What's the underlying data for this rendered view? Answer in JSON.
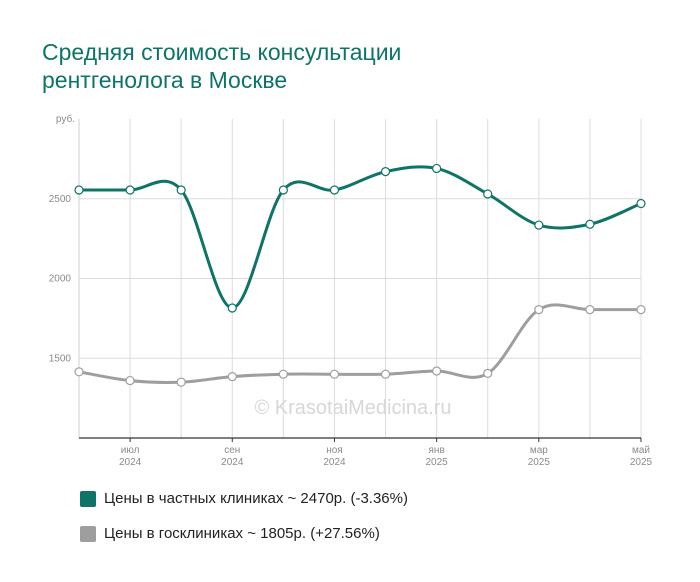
{
  "title_lines": [
    "Средняя стоимость консультации",
    "рентгенолога в Москве"
  ],
  "watermark": "© KrasotaiMedicina.ru",
  "legend": [
    {
      "label": "Цены в частных клиниках ~ 2470р. (-3.36%)",
      "color": "#0e7468"
    },
    {
      "label": "Цены в госклиниках ~ 1805р. (+27.56%)",
      "color": "#9e9e9e"
    }
  ],
  "chart_data": {
    "type": "line",
    "y_unit_label": "руб.",
    "ylim": [
      1000,
      3000
    ],
    "y_ticks": [
      1500,
      2000,
      2500
    ],
    "grid": true,
    "x_tick_labels": [
      {
        "i": 1,
        "month": "июл",
        "year": "2024"
      },
      {
        "i": 3,
        "month": "сен",
        "year": "2024"
      },
      {
        "i": 5,
        "month": "ноя",
        "year": "2024"
      },
      {
        "i": 7,
        "month": "янв",
        "year": "2025"
      },
      {
        "i": 9,
        "month": "мар",
        "year": "2025"
      },
      {
        "i": 11,
        "month": "май",
        "year": "2025"
      }
    ],
    "series": [
      {
        "name": "Цены в частных клиниках",
        "color": "#0e7468",
        "values": [
          2555,
          2555,
          2555,
          1815,
          2555,
          2555,
          2670,
          2690,
          2530,
          2335,
          2340,
          2470
        ]
      },
      {
        "name": "Цены в госклиниках",
        "color": "#9e9e9e",
        "values": [
          1415,
          1360,
          1350,
          1385,
          1400,
          1400,
          1400,
          1420,
          1405,
          1805,
          1805,
          1805
        ]
      }
    ]
  }
}
